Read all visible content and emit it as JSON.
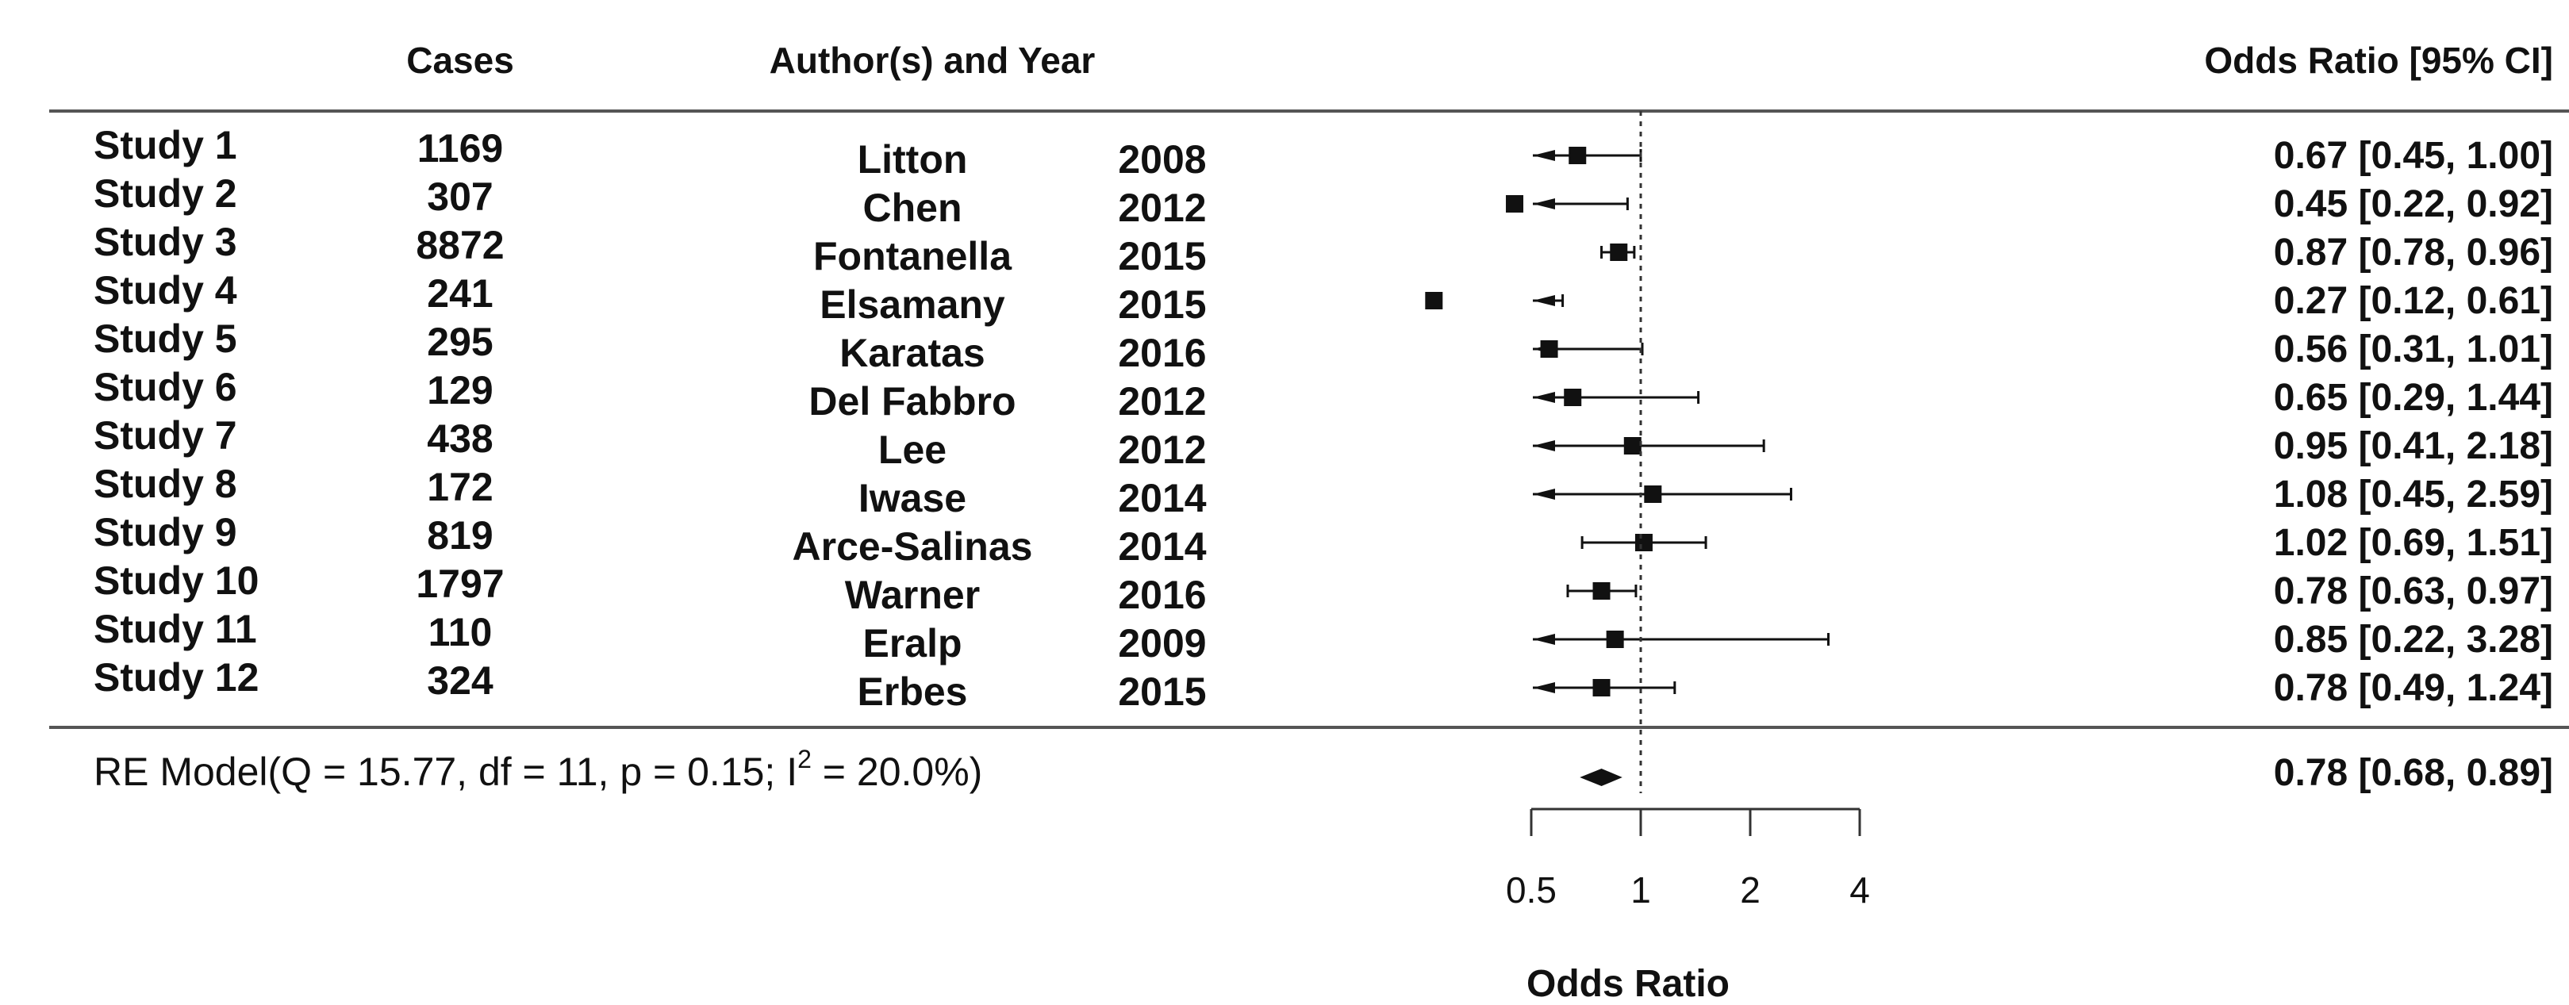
{
  "headers": {
    "cases": "Cases",
    "author_year": "Author(s) and Year",
    "odds_ratio_ci": "Odds Ratio [95% CI]"
  },
  "summary": {
    "label_before_sup": "RE Model(Q = 15.77, df = 11, p = 0.15; I",
    "label_sup": "2",
    "label_after_sup": " = 20.0%)",
    "ci_text": "0.78 [0.68, 0.89]"
  },
  "colors": {
    "ink": "#111111",
    "rule": "#555555"
  },
  "chart_data": {
    "type": "forest",
    "xlabel": "Odds Ratio",
    "x_scale": "log",
    "xticks": [
      0.5,
      1,
      2,
      4
    ],
    "xtick_labels": [
      "0.5",
      "1",
      "2",
      "4"
    ],
    "reference_line": 1,
    "studies": [
      {
        "study": "Study 1",
        "cases": "1169",
        "author": "Litton",
        "year": "2008",
        "or": 0.67,
        "lo": 0.45,
        "hi": 1.0,
        "ci_text": "0.67 [0.45, 1.00]"
      },
      {
        "study": "Study 2",
        "cases": "307",
        "author": "Chen",
        "year": "2012",
        "or": 0.45,
        "lo": 0.22,
        "hi": 0.92,
        "ci_text": "0.45 [0.22, 0.92]"
      },
      {
        "study": "Study 3",
        "cases": "8872",
        "author": "Fontanella",
        "year": "2015",
        "or": 0.87,
        "lo": 0.78,
        "hi": 0.96,
        "ci_text": "0.87 [0.78, 0.96]"
      },
      {
        "study": "Study 4",
        "cases": "241",
        "author": "Elsamany",
        "year": "2015",
        "or": 0.27,
        "lo": 0.12,
        "hi": 0.61,
        "ci_text": "0.27 [0.12, 0.61]"
      },
      {
        "study": "Study 5",
        "cases": "295",
        "author": "Karatas",
        "year": "2016",
        "or": 0.56,
        "lo": 0.31,
        "hi": 1.01,
        "ci_text": "0.56 [0.31, 1.01]"
      },
      {
        "study": "Study 6",
        "cases": "129",
        "author": "Del Fabbro",
        "year": "2012",
        "or": 0.65,
        "lo": 0.29,
        "hi": 1.44,
        "ci_text": "0.65 [0.29, 1.44]"
      },
      {
        "study": "Study 7",
        "cases": "438",
        "author": "Lee",
        "year": "2012",
        "or": 0.95,
        "lo": 0.41,
        "hi": 2.18,
        "ci_text": "0.95 [0.41, 2.18]"
      },
      {
        "study": "Study 8",
        "cases": "172",
        "author": "Iwase",
        "year": "2014",
        "or": 1.08,
        "lo": 0.45,
        "hi": 2.59,
        "ci_text": "1.08 [0.45, 2.59]"
      },
      {
        "study": "Study 9",
        "cases": "819",
        "author": "Arce-Salinas",
        "year": "2014",
        "or": 1.02,
        "lo": 0.69,
        "hi": 1.51,
        "ci_text": "1.02 [0.69, 1.51]"
      },
      {
        "study": "Study 10",
        "cases": "1797",
        "author": "Warner",
        "year": "2016",
        "or": 0.78,
        "lo": 0.63,
        "hi": 0.97,
        "ci_text": "0.78 [0.63, 0.97]"
      },
      {
        "study": "Study 11",
        "cases": "110",
        "author": "Eralp",
        "year": "2009",
        "or": 0.85,
        "lo": 0.22,
        "hi": 3.28,
        "ci_text": "0.85 [0.22, 3.28]"
      },
      {
        "study": "Study 12",
        "cases": "324",
        "author": "Erbes",
        "year": "2015",
        "or": 0.78,
        "lo": 0.49,
        "hi": 1.24,
        "ci_text": "0.78 [0.49, 1.24]"
      }
    ],
    "summary_estimate": {
      "or": 0.78,
      "lo": 0.68,
      "hi": 0.89
    }
  }
}
